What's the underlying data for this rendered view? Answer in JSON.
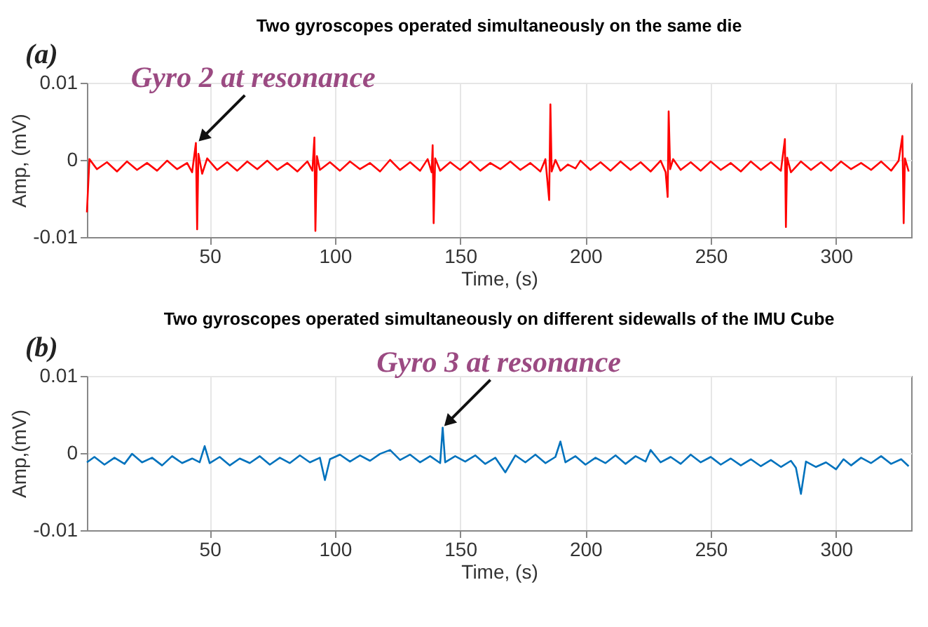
{
  "chart_data": [
    {
      "type": "line",
      "title": "Two gyroscopes operated simultaneously on the same die",
      "xlabel": "Time, (s)",
      "ylabel": "Amp, (mV)",
      "xlim": [
        1,
        330
      ],
      "xticks": [
        50,
        100,
        150,
        200,
        250,
        300
      ],
      "ylim": [
        -0.01,
        0.01
      ],
      "yticks": [
        -0.01,
        0,
        0.01
      ],
      "grid": true,
      "annotations": [
        "(a)",
        {
          "text": "Gyro 2 at resonance",
          "x": 45,
          "y": 0.0022
        }
      ],
      "series": [
        {
          "color": "#ff0000",
          "x": [
            1,
            2,
            5,
            9,
            13,
            17,
            21,
            25,
            29,
            33,
            37,
            41,
            43,
            44.5,
            45,
            45.5,
            47,
            49,
            53,
            57,
            61,
            65,
            69,
            73,
            77,
            81,
            85,
            89,
            91,
            91.8,
            92.2,
            92.8,
            94,
            98,
            102,
            106,
            110,
            114,
            118,
            122,
            126,
            130,
            134,
            137,
            138.6,
            139,
            139.4,
            140,
            142,
            146,
            150,
            154,
            158,
            162,
            166,
            170,
            174,
            178,
            182,
            184,
            185.5,
            186,
            186.5,
            188,
            190,
            193,
            196,
            198,
            202,
            206,
            210,
            214,
            218,
            222,
            226,
            230,
            232,
            232.8,
            233.2,
            233.8,
            235,
            238,
            242,
            246,
            250,
            254,
            258,
            262,
            266,
            270,
            274,
            278,
            279.6,
            280,
            280.5,
            282,
            286,
            290,
            294,
            298,
            302,
            306,
            310,
            314,
            318,
            322,
            325,
            326.5,
            327,
            327.5,
            329
          ],
          "values": [
            -0.0068,
            0.0001,
            -0.0012,
            -0.0003,
            -0.0015,
            -0.0002,
            -0.0013,
            -0.0004,
            -0.0014,
            -0.0001,
            -0.0012,
            -0.0004,
            -0.0016,
            0.0022,
            -0.009,
            0.0008,
            -0.0018,
            0.0002,
            -0.0013,
            -0.0003,
            -0.0014,
            -0.0002,
            -0.0012,
            -0.0001,
            -0.0013,
            -0.0004,
            -0.0015,
            -0.0002,
            -0.0014,
            0.0029,
            -0.0092,
            0.0005,
            -0.0013,
            -0.0003,
            -0.0014,
            -0.0002,
            -0.0012,
            -0.0004,
            -0.0015,
            0.0,
            -0.0013,
            -0.0003,
            -0.0014,
            0.0001,
            -0.0016,
            0.0019,
            -0.0082,
            0.0002,
            -0.0014,
            -0.0003,
            -0.0013,
            -0.0002,
            -0.0014,
            -0.0004,
            -0.0012,
            -0.0002,
            -0.0013,
            -0.0004,
            -0.0015,
            0.0001,
            -0.0052,
            0.0072,
            -0.0015,
            0.0,
            -0.0014,
            -0.0006,
            -0.0011,
            -0.0001,
            -0.0013,
            -0.0003,
            -0.0014,
            -0.0002,
            -0.0013,
            -0.0003,
            -0.0015,
            -0.0001,
            -0.0016,
            -0.0048,
            0.0063,
            -0.0012,
            0.0001,
            -0.0013,
            -0.0003,
            -0.0014,
            -0.0002,
            -0.0013,
            -0.0004,
            -0.0015,
            -0.0002,
            -0.0013,
            -0.0003,
            -0.0014,
            0.0027,
            -0.0087,
            0.0003,
            -0.0016,
            -0.0002,
            -0.0013,
            -0.0003,
            -0.0014,
            -0.0002,
            -0.0012,
            -0.0004,
            -0.0013,
            -0.0002,
            -0.0014,
            -0.0001,
            0.0031,
            -0.0082,
            0.0002,
            -0.0015
          ]
        }
      ]
    },
    {
      "type": "line",
      "title": "Two gyroscopes operated simultaneously on different sidewalls of the IMU Cube",
      "xlabel": "Time, (s)",
      "ylabel": "Amp,(mV)",
      "xlim": [
        1,
        330
      ],
      "xticks": [
        50,
        100,
        150,
        200,
        250,
        300
      ],
      "ylim": [
        -0.01,
        0.01
      ],
      "yticks": [
        -0.01,
        0,
        0.01
      ],
      "grid": true,
      "annotations": [
        "(b)",
        {
          "text": "Gyro 3 at resonance",
          "x": 143,
          "y": 0.0033
        }
      ],
      "series": [
        {
          "color": "#0072bd",
          "x": [
            1,
            4,
            8,
            12,
            16,
            19,
            23,
            27,
            31,
            35,
            39,
            43,
            46,
            48,
            50,
            54,
            58,
            62,
            66,
            70,
            74,
            78,
            82,
            86,
            90,
            94,
            96,
            98,
            102,
            106,
            110,
            114,
            118,
            122,
            126,
            130,
            134,
            138,
            142,
            143,
            144,
            148,
            152,
            156,
            160,
            164,
            168,
            172,
            176,
            180,
            184,
            188,
            190,
            192,
            196,
            200,
            204,
            208,
            212,
            216,
            220,
            224,
            226,
            230,
            234,
            238,
            242,
            246,
            250,
            254,
            258,
            262,
            266,
            270,
            274,
            278,
            282,
            284,
            286,
            288,
            292,
            296,
            300,
            303,
            306,
            310,
            314,
            318,
            322,
            326,
            329
          ],
          "values": [
            -0.0012,
            -0.0005,
            -0.0015,
            -0.0006,
            -0.0014,
            -0.0001,
            -0.0012,
            -0.0006,
            -0.0016,
            -0.0004,
            -0.0013,
            -0.0007,
            -0.0012,
            0.0009,
            -0.0013,
            -0.0005,
            -0.0016,
            -0.0007,
            -0.0013,
            -0.0004,
            -0.0015,
            -0.0006,
            -0.0013,
            -0.0003,
            -0.0012,
            -0.0006,
            -0.0035,
            -0.0008,
            -0.0002,
            -0.0011,
            -0.0003,
            -0.001,
            -0.0001,
            0.0004,
            -0.0009,
            -0.0002,
            -0.0012,
            -0.0004,
            -0.0013,
            0.0033,
            -0.0012,
            -0.0004,
            -0.0011,
            -0.0003,
            -0.0014,
            -0.0006,
            -0.0025,
            -0.0003,
            -0.0012,
            -0.0002,
            -0.0013,
            -0.0005,
            0.0015,
            -0.0012,
            -0.0004,
            -0.0015,
            -0.0006,
            -0.0013,
            -0.0003,
            -0.0014,
            -0.0004,
            -0.0011,
            0.0004,
            -0.0012,
            -0.0005,
            -0.0014,
            -0.0002,
            -0.0012,
            -0.0005,
            -0.0015,
            -0.0007,
            -0.0016,
            -0.0008,
            -0.0017,
            -0.0009,
            -0.0018,
            -0.001,
            -0.0019,
            -0.0053,
            -0.0011,
            -0.0018,
            -0.0012,
            -0.0021,
            -0.0008,
            -0.0016,
            -0.0006,
            -0.0013,
            -0.0004,
            -0.0014,
            -0.0008,
            -0.0017
          ]
        }
      ]
    }
  ]
}
